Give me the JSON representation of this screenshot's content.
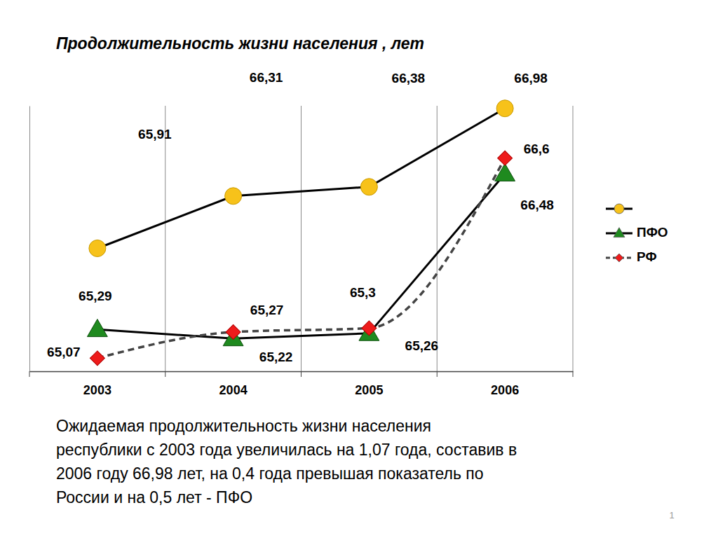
{
  "chart_data": {
    "type": "line",
    "title": "Продолжительность жизни населения , лет",
    "categories": [
      "2003",
      "2004",
      "2005",
      "2006"
    ],
    "series": [
      {
        "name": null,
        "color": "#f7c21a",
        "marker": "circle",
        "line_style": "solid",
        "values": [
          65.91,
          66.31,
          66.38,
          66.98
        ],
        "value_labels": [
          "65,91",
          "66,31",
          "66,38",
          "66,98"
        ]
      },
      {
        "name": "ПФО",
        "color": "#1f8a1f",
        "marker": "triangle",
        "line_style": "solid",
        "values": [
          65.29,
          65.22,
          65.26,
          66.48
        ],
        "value_labels": [
          "65,29",
          "65,22",
          "65,26",
          "66,48"
        ]
      },
      {
        "name": "РФ",
        "color": "#ee1b1b",
        "marker": "diamond",
        "line_style": "dashed",
        "values": [
          65.07,
          65.27,
          65.3,
          66.6
        ],
        "value_labels": [
          "65,07",
          "65,27",
          "65,3",
          "66,6"
        ]
      }
    ],
    "ylim": [
      64.97,
      67.0
    ],
    "grid": true,
    "legend": "right",
    "data_labels": true,
    "tick_labels": "x"
  },
  "slide_text": {
    "text_lines": [
      "Ожидаемая продолжительность жизни населения",
      "республики с 2003 года увеличилась на 1,07 года, составив в",
      "2006 году 66,98 лет, на 0,4 года превышая показатель по",
      "России и на 0,5 лет - ПФО"
    ],
    "page_number": "1"
  }
}
